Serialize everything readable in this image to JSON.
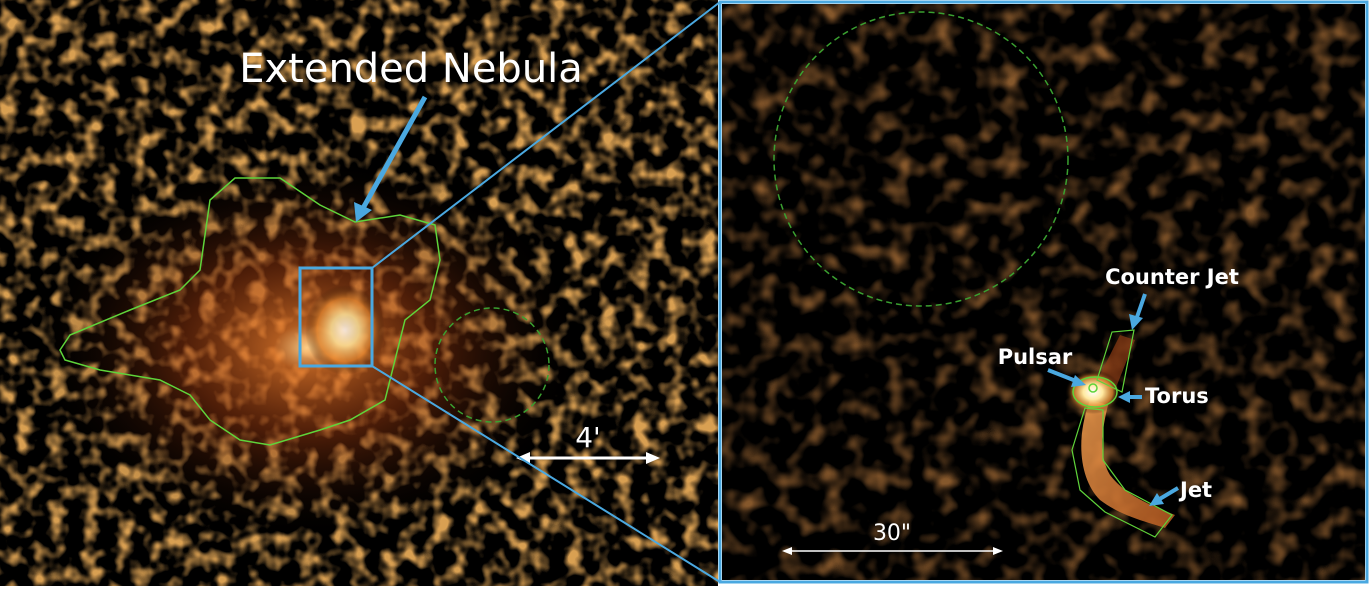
{
  "left_panel": {
    "label": "Extended Nebula",
    "scale_bar": "4'"
  },
  "right_panel": {
    "labels": {
      "counter_jet": "Counter Jet",
      "pulsar": "Pulsar",
      "torus": "Torus",
      "jet": "Jet"
    },
    "scale_bar": "30\""
  }
}
